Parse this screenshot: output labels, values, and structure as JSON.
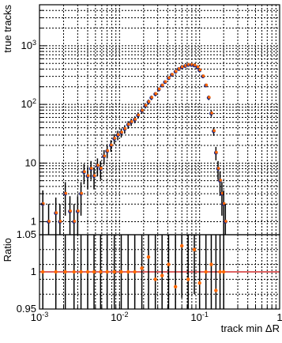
{
  "chart_data": [
    {
      "type": "scatter",
      "panel": "upper",
      "ylabel": "true tracks",
      "xscale": "log",
      "yscale": "log",
      "xlim": [
        0.001,
        1
      ],
      "ylim": [
        0.6,
        5000
      ],
      "grid": "dotted",
      "x_ticks": [
        "10^-3",
        "10^-2",
        "10^-1",
        "1"
      ],
      "y_ticks": [
        "1",
        "10",
        "10^2",
        "10^3"
      ],
      "series": [
        {
          "marker_colors": [
            "#1a237e",
            "#ff6600"
          ],
          "x": [
            0.0011,
            0.0013,
            0.0016,
            0.0018,
            0.0021,
            0.0024,
            0.0027,
            0.003,
            0.0033,
            0.0036,
            0.004,
            0.0044,
            0.0048,
            0.0053,
            0.0058,
            0.0064,
            0.007,
            0.0078,
            0.0086,
            0.0095,
            0.0105,
            0.0116,
            0.0128,
            0.014,
            0.0155,
            0.017,
            0.019,
            0.021,
            0.023,
            0.025,
            0.028,
            0.031,
            0.034,
            0.037,
            0.041,
            0.045,
            0.05,
            0.055,
            0.06,
            0.066,
            0.072,
            0.079,
            0.086,
            0.094,
            0.1,
            0.11,
            0.12,
            0.13,
            0.14,
            0.15,
            0.16,
            0.17,
            0.18,
            0.19,
            0.2,
            0.21
          ],
          "y": [
            2,
            1,
            1.4,
            1,
            3,
            1.5,
            1,
            1.5,
            3,
            7,
            6,
            8,
            6,
            9,
            8,
            13,
            16,
            20,
            26,
            30,
            33,
            38,
            45,
            50,
            55,
            65,
            78,
            95,
            110,
            130,
            150,
            180,
            210,
            240,
            280,
            320,
            360,
            400,
            430,
            450,
            470,
            470,
            460,
            430,
            380,
            300,
            210,
            130,
            70,
            35,
            15,
            8,
            5,
            3,
            2,
            1
          ]
        }
      ]
    },
    {
      "type": "scatter",
      "panel": "lower",
      "ylabel": "Ratio",
      "xlabel": "track min ΔR",
      "xscale": "log",
      "xlim": [
        0.001,
        1
      ],
      "ylim": [
        0.95,
        1.05
      ],
      "y_ticks": [
        "0.95",
        "1",
        "1.05"
      ],
      "grid": "dotted",
      "series": [
        {
          "marker_colors": [
            "#1a237e",
            "#ff6600"
          ],
          "x": [
            0.0011,
            0.0016,
            0.0021,
            0.0027,
            0.0033,
            0.004,
            0.0048,
            0.0058,
            0.007,
            0.0086,
            0.0105,
            0.0128,
            0.0155,
            0.019,
            0.023,
            0.028,
            0.034,
            0.041,
            0.05,
            0.06,
            0.072,
            0.086,
            0.1,
            0.12,
            0.14,
            0.16,
            0.18,
            0.2
          ],
          "y": [
            1,
            1,
            1,
            1,
            1,
            1,
            1,
            1,
            1,
            1,
            1,
            1,
            1,
            1.005,
            1.02,
            0.99,
            0.995,
            1.01,
            0.98,
            1.035,
            0.99,
            1.03,
            0.985,
            1,
            1.01,
            0.975,
            1,
            1
          ],
          "ratio_error": [
            0.5,
            0.5,
            0.5,
            0.4,
            0.4,
            0.3,
            0.3,
            0.3,
            0.25,
            0.2,
            0.2,
            0.18,
            0.15,
            0.13,
            0.12,
            0.1,
            0.09,
            0.08,
            0.07,
            0.07,
            0.06,
            0.06,
            0.07,
            0.09,
            0.15,
            0.25,
            0.4,
            0.5
          ]
        }
      ]
    }
  ]
}
